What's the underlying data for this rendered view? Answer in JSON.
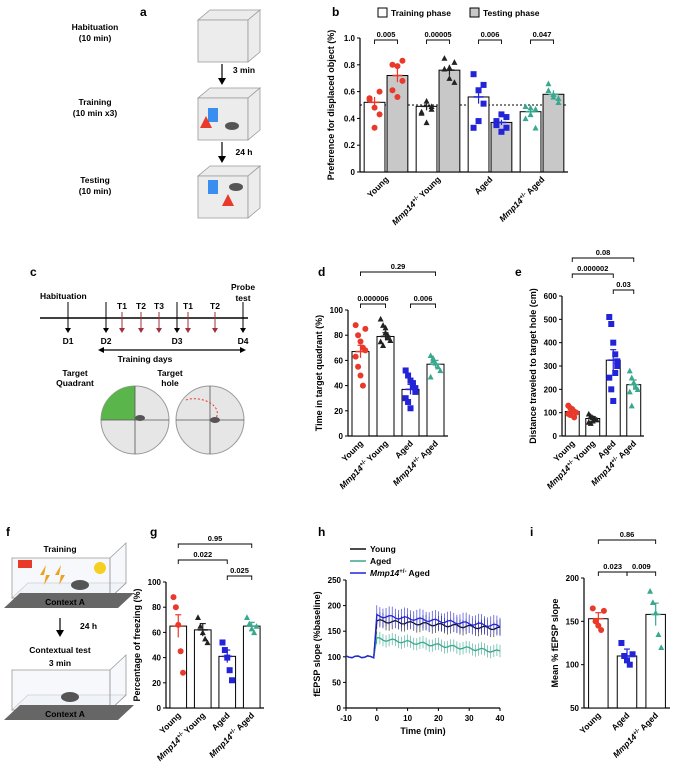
{
  "panels": {
    "a": "a",
    "b": "b",
    "c": "c",
    "d": "d",
    "e": "e",
    "f": "f",
    "g": "g",
    "h": "h",
    "i": "i"
  },
  "schematic_a": {
    "habituation": [
      "Habituation",
      "(10 min)"
    ],
    "training": [
      "Training",
      "(10 min x3)"
    ],
    "testing": [
      "Testing",
      "(10 min)"
    ],
    "gap1": "3 min",
    "gap2": "24 h"
  },
  "schematic_c": {
    "habituation": "Habituation",
    "probe": [
      "Probe",
      "test"
    ],
    "days": [
      "D1",
      "D2",
      "D3",
      "D4"
    ],
    "trials": [
      "T1",
      "T2",
      "T3",
      "T1",
      "T2"
    ],
    "training_days": "Training days",
    "target_quadrant": [
      "Target",
      "Quadrant"
    ],
    "target_hole": [
      "Target",
      "hole"
    ]
  },
  "schematic_f": {
    "training": "Training",
    "context_a": "Context A",
    "gap": "24 h",
    "contextual_test": "Contextual test",
    "duration": "3 min",
    "context_a2": "Context A"
  },
  "chart_data": [
    {
      "panel": "b",
      "type": "bar",
      "ylabel": "Preference for displaced object (%)",
      "ylim": [
        0,
        1.0
      ],
      "yticks": [
        "0",
        "0.2",
        "0.4",
        "0.6",
        "0.8",
        "1.0"
      ],
      "chance_line": 0.5,
      "legend": [
        "Training phase",
        "Testing phase"
      ],
      "groups": [
        "Young",
        "Mmp14+/- Young",
        "Aged",
        "Mmp14+/- Aged"
      ],
      "group_labels": [
        {
          "pre": "Young",
          "sup": "",
          "post": ""
        },
        {
          "pre": "Mmp14",
          "sup": "+/-",
          "post": " Young"
        },
        {
          "pre": "Aged",
          "sup": "",
          "post": ""
        },
        {
          "pre": "Mmp14",
          "sup": "+/-",
          "post": " Aged"
        }
      ],
      "series": [
        {
          "name": "Training phase",
          "values": [
            0.52,
            0.49,
            0.56,
            0.45
          ],
          "sem": [
            0.04,
            0.03,
            0.05,
            0.02
          ]
        },
        {
          "name": "Testing phase",
          "values": [
            0.72,
            0.76,
            0.37,
            0.58
          ],
          "sem": [
            0.05,
            0.04,
            0.02,
            0.03
          ]
        }
      ],
      "colors": [
        "#e8392a",
        "#222222",
        "#2323d8",
        "#3aa88e"
      ],
      "points": [
        [
          [
            0.55,
            0.48,
            0.43,
            0.54,
            0.33,
            0.6
          ],
          [
            0.8,
            0.79,
            0.68,
            0.61,
            0.56,
            0.83
          ]
        ],
        [
          [
            0.45,
            0.53,
            0.47,
            0.44,
            0.37,
            0.49
          ],
          [
            0.85,
            0.7,
            0.67,
            0.77,
            0.78,
            0.82
          ]
        ],
        [
          [
            0.73,
            0.61,
            0.51,
            0.33,
            0.38,
            0.65
          ],
          [
            0.38,
            0.43,
            0.33,
            0.35,
            0.3,
            0.41
          ]
        ],
        [
          [
            0.4,
            0.48,
            0.33,
            0.49,
            0.43,
            0.47
          ],
          [
            0.61,
            0.56,
            0.52,
            0.66,
            0.58,
            0.55
          ]
        ]
      ],
      "pvalues": [
        "0.005",
        "0.00005",
        "0.006",
        "0.047"
      ]
    },
    {
      "panel": "d",
      "type": "bar",
      "ylabel": "Time in target quadrant (%)",
      "ylim": [
        0,
        100
      ],
      "yticks": [
        "0",
        "20",
        "40",
        "60",
        "80",
        "100"
      ],
      "categories": [
        "Young",
        "Mmp14+/- Young",
        "Aged",
        "Mmp14+/- Aged"
      ],
      "values": [
        67,
        79,
        37,
        57
      ],
      "sem": [
        5,
        3,
        4,
        3
      ],
      "colors": [
        "#e8392a",
        "#222222",
        "#2323d8",
        "#3aa88e"
      ],
      "points": [
        [
          88,
          80,
          75,
          70,
          68,
          63,
          55,
          48,
          40,
          85
        ],
        [
          93,
          88,
          82,
          78,
          76,
          75,
          72,
          86,
          80
        ],
        [
          52,
          48,
          44,
          40,
          35,
          30,
          27,
          22,
          42,
          38
        ],
        [
          64,
          60,
          58,
          55,
          52,
          47,
          62
        ]
      ],
      "comparisons": [
        {
          "from": 0,
          "to": 1,
          "text": "0.000006"
        },
        {
          "from": 2,
          "to": 3,
          "text": "0.006"
        },
        {
          "from": 0,
          "to": 3,
          "text": "0.29"
        }
      ]
    },
    {
      "panel": "e",
      "type": "bar",
      "ylabel": "Distance traveled to target hole (cm)",
      "ylim": [
        0,
        600
      ],
      "yticks": [
        "0",
        "100",
        "200",
        "300",
        "400",
        "500",
        "600"
      ],
      "categories": [
        "Young",
        "Mmp14+/- Young",
        "Aged",
        "Mmp14+/- Aged"
      ],
      "values": [
        105,
        75,
        325,
        220
      ],
      "sem": [
        10,
        8,
        45,
        20
      ],
      "colors": [
        "#e8392a",
        "#222222",
        "#2323d8",
        "#3aa88e"
      ],
      "points": [
        [
          130,
          120,
          110,
          105,
          100,
          95,
          90,
          115,
          80
        ],
        [
          95,
          85,
          80,
          75,
          70,
          60,
          55,
          65
        ],
        [
          510,
          480,
          400,
          350,
          300,
          250,
          200,
          150,
          270,
          320
        ],
        [
          280,
          250,
          230,
          210,
          200,
          190,
          130
        ]
      ],
      "comparisons": [
        {
          "from": 0,
          "to": 2,
          "text": "0.000002"
        },
        {
          "from": 2,
          "to": 3,
          "text": "0.03"
        },
        {
          "from": 0,
          "to": 3,
          "text": "0.08"
        }
      ]
    },
    {
      "panel": "g",
      "type": "bar",
      "ylabel": "Percentage of freezing (%)",
      "ylim": [
        0,
        100
      ],
      "yticks": [
        "0",
        "20",
        "40",
        "60",
        "80",
        "100"
      ],
      "categories": [
        "Young",
        "Mmp14+/- Young",
        "Aged",
        "Mmp14+/- Aged"
      ],
      "values": [
        65,
        62,
        41,
        65
      ],
      "sem": [
        9,
        5,
        5,
        3
      ],
      "colors": [
        "#e8392a",
        "#222222",
        "#2323d8",
        "#3aa88e"
      ],
      "points": [
        [
          88,
          80,
          66,
          45,
          28
        ],
        [
          72,
          65,
          60,
          55,
          52
        ],
        [
          52,
          46,
          40,
          30,
          22
        ],
        [
          72,
          67,
          63,
          60,
          65
        ]
      ],
      "comparisons": [
        {
          "from": 0,
          "to": 2,
          "text": "0.022"
        },
        {
          "from": 2,
          "to": 3,
          "text": "0.025"
        },
        {
          "from": 0,
          "to": 3,
          "text": "0.95"
        }
      ]
    },
    {
      "panel": "h",
      "type": "line",
      "xlabel": "Time (min)",
      "ylabel": "fEPSP slope (%baseline)",
      "xlim": [
        -10,
        40
      ],
      "ylim": [
        0,
        250
      ],
      "xticks": [
        "-10",
        "0",
        "10",
        "20",
        "30",
        "40"
      ],
      "yticks": [
        "0",
        "50",
        "100",
        "150",
        "200",
        "250"
      ],
      "legend": [
        "Young",
        "Aged",
        "Mmp14+/- Aged"
      ],
      "series": [
        {
          "name": "Young",
          "color": "#111111",
          "baseline": 100,
          "peak": 170,
          "end": 155,
          "sem": 15
        },
        {
          "name": "Aged",
          "color": "#3aa88e",
          "baseline": 100,
          "peak": 135,
          "end": 110,
          "sem": 12
        },
        {
          "name": "Mmp14+/- Aged",
          "color": "#2323d8",
          "baseline": 100,
          "peak": 180,
          "end": 160,
          "sem": 18
        }
      ]
    },
    {
      "panel": "i",
      "type": "bar",
      "ylabel": "Mean % fEPSP slope",
      "ylim": [
        50,
        200
      ],
      "yticks": [
        "50",
        "100",
        "150",
        "200"
      ],
      "categories": [
        "Young",
        "Aged",
        "Mmp14+/- Aged"
      ],
      "values": [
        153,
        110,
        158
      ],
      "sem": [
        7,
        8,
        13
      ],
      "colors": [
        "#e8392a",
        "#2323d8",
        "#3aa88e"
      ],
      "points": [
        [
          165,
          150,
          145,
          140,
          162
        ],
        [
          125,
          110,
          105,
          100,
          112
        ],
        [
          185,
          172,
          160,
          135,
          120
        ]
      ],
      "comparisons": [
        {
          "from": 0,
          "to": 1,
          "text": "0.023"
        },
        {
          "from": 1,
          "to": 2,
          "text": "0.009"
        },
        {
          "from": 0,
          "to": 2,
          "text": "0.86"
        }
      ]
    }
  ]
}
